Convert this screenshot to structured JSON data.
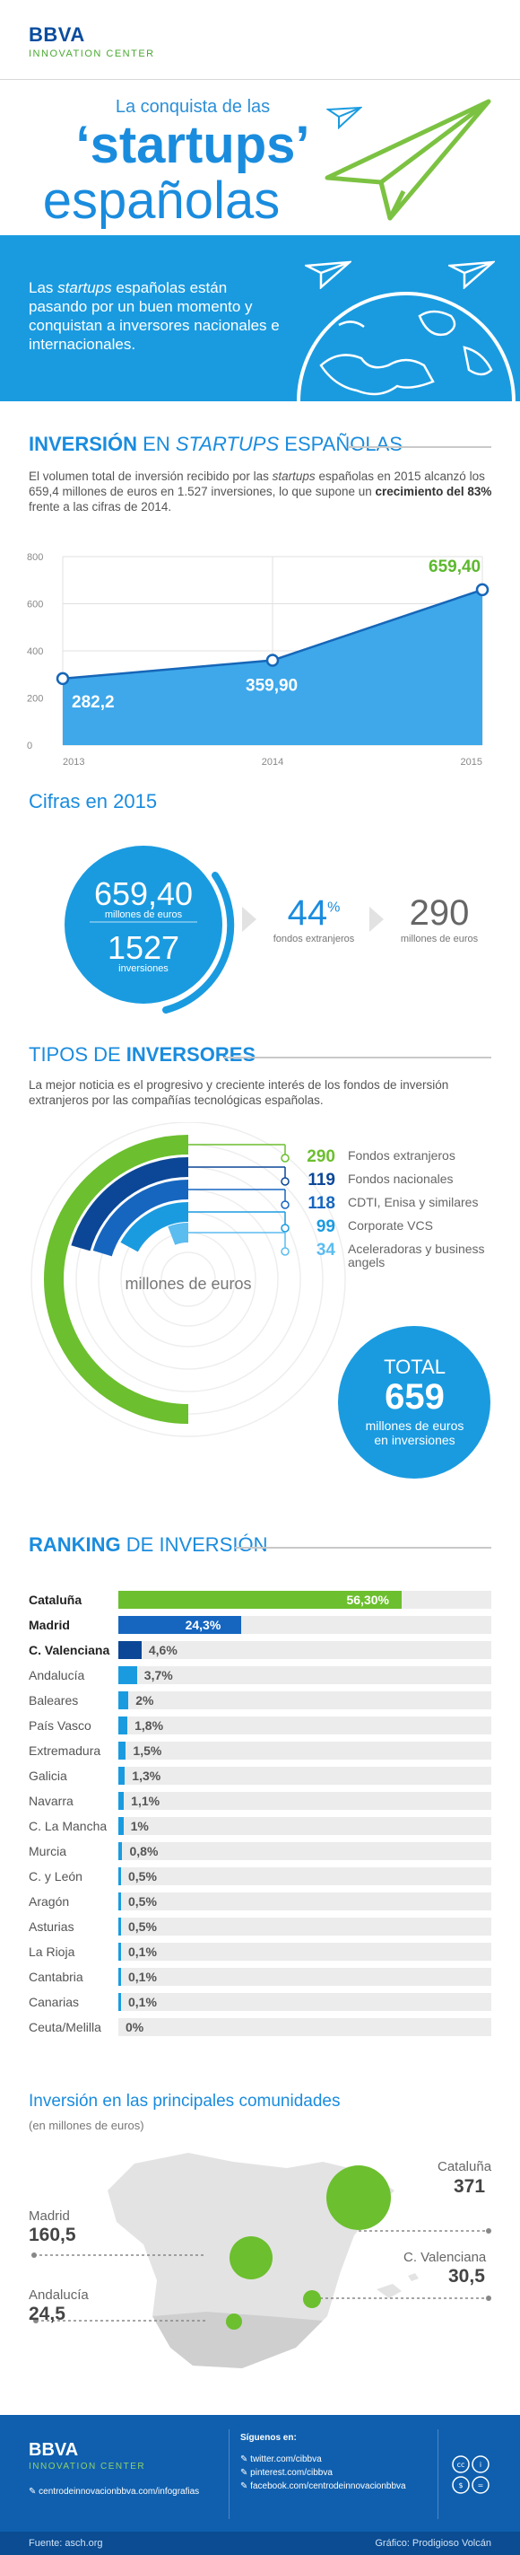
{
  "header": {
    "logo": "BBVA",
    "subbrand": "INNOVATION CENTER"
  },
  "title": {
    "line1": "La conquista de las",
    "line2": "‘startups’",
    "line3": "españolas"
  },
  "intro": {
    "pre": "Las ",
    "em": "startups",
    "post": " españolas están pasando por un buen momento y conquistan a inversores nacionales e internacionales."
  },
  "investment": {
    "heading_bold": "INVERSIÓN",
    "heading_rest": " EN ",
    "heading_em": "STARTUPS",
    "heading_tail": " ESPAÑOLAS",
    "p_a": "El volumen total de inversión recibido por las ",
    "p_em": "startups",
    "p_b": " españolas en 2015 alcanzó los 659,4 millones de euros en 1.527 inversiones, lo que supone un ",
    "p_bold": "crecimiento del 83%",
    "p_c": " frente a las cifras de 2014."
  },
  "chart_data": {
    "type": "area",
    "x": [
      "2013",
      "2014",
      "2015"
    ],
    "values": [
      282.2,
      359.9,
      659.4
    ],
    "value_labels": [
      "282,2",
      "359,90",
      "659,40"
    ],
    "y_ticks": [
      "0",
      "200",
      "400",
      "600",
      "800"
    ],
    "ylim": [
      0,
      800
    ],
    "grid": true,
    "colors": {
      "fill": "#3ea8ea",
      "line": "#1666b8",
      "highlight": "#5cb82e"
    }
  },
  "cifras": {
    "heading": "Cifras en 2015",
    "big1": "659,40",
    "big1_unit": "millones de euros",
    "big2": "1527",
    "big2_unit": "inversiones",
    "pct": "44",
    "pct_sign": "%",
    "pct_label": "fondos extranjeros",
    "amount": "290",
    "amount_label": "millones de euros"
  },
  "investors": {
    "heading_a": "TIPOS DE ",
    "heading_b": "INVERSORES",
    "para": "La mejor noticia es el progresivo y creciente interés de los fondos de inversión extranjeros por las compañías tecnológicas españolas.",
    "center_label": "millones de euros",
    "rows": [
      {
        "value": "290",
        "label": "Fondos extranjeros",
        "color": "#6cbf2e"
      },
      {
        "value": "119",
        "label": "Fondos nacionales",
        "color": "#0c4797"
      },
      {
        "value": "118",
        "label": "CDTI, Enisa y similares",
        "color": "#1666c0"
      },
      {
        "value": "99",
        "label": "Corporate VCS",
        "color": "#1a9be0"
      },
      {
        "value": "34",
        "label": "Aceleradoras y business angels",
        "color": "#5bbcf0"
      }
    ],
    "total_label": "TOTAL",
    "total_value": "659",
    "total_unit": "millones de euros en inversiones"
  },
  "ranking": {
    "heading_a": "RANKING",
    "heading_b": " DE INVERSIÓN",
    "rows": [
      {
        "name": "Cataluña",
        "value": 56.3,
        "label": "56,30%",
        "bold": true,
        "color": "#6cbf2e"
      },
      {
        "name": "Madrid",
        "value": 24.3,
        "label": "24,3%",
        "bold": true,
        "color": "#1666c0"
      },
      {
        "name": "C. Valenciana",
        "value": 4.6,
        "label": "4,6%",
        "bold": true,
        "color": "#0c4797"
      },
      {
        "name": "Andalucía",
        "value": 3.7,
        "label": "3,7%",
        "bold": false,
        "color": "#1a9be0"
      },
      {
        "name": "Baleares",
        "value": 2,
        "label": "2%",
        "bold": false,
        "color": "#1a9be0"
      },
      {
        "name": "País Vasco",
        "value": 1.8,
        "label": "1,8%",
        "bold": false,
        "color": "#1a9be0"
      },
      {
        "name": "Extremadura",
        "value": 1.5,
        "label": "1,5%",
        "bold": false,
        "color": "#1a9be0"
      },
      {
        "name": "Galicia",
        "value": 1.3,
        "label": "1,3%",
        "bold": false,
        "color": "#1a9be0"
      },
      {
        "name": "Navarra",
        "value": 1.1,
        "label": "1,1%",
        "bold": false,
        "color": "#1a9be0"
      },
      {
        "name": "C. La Mancha",
        "value": 1,
        "label": "1%",
        "bold": false,
        "color": "#1a9be0"
      },
      {
        "name": "Murcia",
        "value": 0.8,
        "label": "0,8%",
        "bold": false,
        "color": "#1a9be0"
      },
      {
        "name": "C. y León",
        "value": 0.5,
        "label": "0,5%",
        "bold": false,
        "color": "#1a9be0"
      },
      {
        "name": "Aragón",
        "value": 0.5,
        "label": "0,5%",
        "bold": false,
        "color": "#1a9be0"
      },
      {
        "name": "Asturias",
        "value": 0.5,
        "label": "0,5%",
        "bold": false,
        "color": "#1a9be0"
      },
      {
        "name": "La Rioja",
        "value": 0.1,
        "label": "0,1%",
        "bold": false,
        "color": "#1a9be0"
      },
      {
        "name": "Cantabria",
        "value": 0.1,
        "label": "0,1%",
        "bold": false,
        "color": "#1a9be0"
      },
      {
        "name": "Canarias",
        "value": 0.1,
        "label": "0,1%",
        "bold": false,
        "color": "#1a9be0"
      },
      {
        "name": "Ceuta/Melilla",
        "value": 0,
        "label": "0%",
        "bold": false,
        "color": "#1a9be0"
      }
    ]
  },
  "map": {
    "heading": "Inversión en las principales comunidades",
    "sub": "(en millones de euros)",
    "cataluna_label": "Cataluña",
    "cataluna_value": "371",
    "madrid_label": "Madrid",
    "madrid_value": "160,5",
    "valenciana_label": "C. Valenciana",
    "valenciana_value": "30,5",
    "andalucia_label": "Andalucía",
    "andalucia_value": "24,5"
  },
  "footer": {
    "logo": "BBVA",
    "subbrand": "INNOVATION CENTER",
    "link_main": "centrodeinnovacionbbva.com/infografias",
    "follow": "Síguenos en:",
    "social": [
      "twitter.com/cibbva",
      "pinterest.com/cibbva",
      "facebook.com/centrodeinnovacionbbva"
    ],
    "source": "Fuente: asch.org",
    "credit": "Gráfico: Prodigioso Volcán"
  }
}
